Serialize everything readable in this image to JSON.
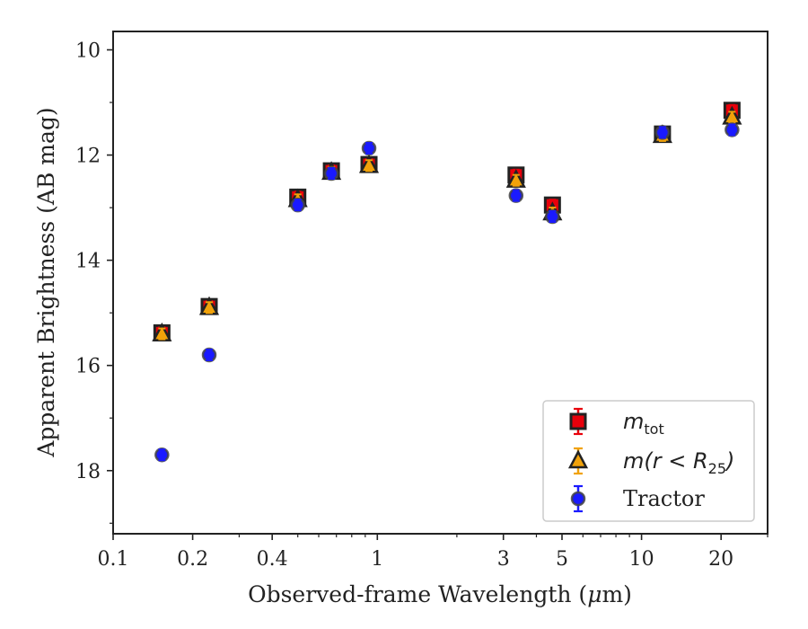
{
  "chart_data": {
    "type": "scatter",
    "xlabel_prefix": "Observed-frame Wavelength (",
    "xlabel_mu": "μ",
    "xlabel_suffix": "m)",
    "ylabel": "Apparent Brightness (AB mag)",
    "xscale": "log",
    "xlim": [
      0.1,
      30
    ],
    "ylim": [
      19.2,
      9.65
    ],
    "y_inverted": true,
    "x_ticks": [
      {
        "value": 0.1,
        "label": "0.1"
      },
      {
        "value": 0.2,
        "label": "0.2"
      },
      {
        "value": 0.4,
        "label": "0.4"
      },
      {
        "value": 1,
        "label": "1"
      },
      {
        "value": 3,
        "label": "3"
      },
      {
        "value": 5,
        "label": "5"
      },
      {
        "value": 10,
        "label": "10"
      },
      {
        "value": 20,
        "label": "20"
      }
    ],
    "y_ticks": [
      {
        "value": 10,
        "label": "10"
      },
      {
        "value": 12,
        "label": "12"
      },
      {
        "value": 14,
        "label": "14"
      },
      {
        "value": 16,
        "label": "16"
      },
      {
        "value": 18,
        "label": "18"
      }
    ],
    "grid": false,
    "legend_position": "bottom-right",
    "series": [
      {
        "key": "mtot",
        "legend": {
          "base": "m",
          "sub": "tot",
          "tail": ""
        },
        "marker": "square",
        "color": "#e8000b",
        "edge": "#222222",
        "errcolor": "#e8000b",
        "points": [
          {
            "x": 0.153,
            "y": 15.38
          },
          {
            "x": 0.231,
            "y": 14.88
          },
          {
            "x": 0.5,
            "y": 12.8
          },
          {
            "x": 0.67,
            "y": 12.3
          },
          {
            "x": 0.93,
            "y": 12.18
          },
          {
            "x": 3.35,
            "y": 12.38
          },
          {
            "x": 4.6,
            "y": 12.95
          },
          {
            "x": 12.0,
            "y": 11.6
          },
          {
            "x": 22.0,
            "y": 11.15
          }
        ]
      },
      {
        "key": "mr25",
        "legend": {
          "base": "m",
          "pre": "(r < R",
          "sub": "25",
          "tail": ")"
        },
        "marker": "triangle",
        "color": "#f1a20a",
        "edge": "#222222",
        "errcolor": "#f1a20a",
        "points": [
          {
            "x": 0.153,
            "y": 15.4
          },
          {
            "x": 0.231,
            "y": 14.9
          },
          {
            "x": 0.5,
            "y": 12.85
          },
          {
            "x": 0.67,
            "y": 12.33
          },
          {
            "x": 0.93,
            "y": 12.2
          },
          {
            "x": 3.35,
            "y": 12.48
          },
          {
            "x": 4.6,
            "y": 13.1
          },
          {
            "x": 12.0,
            "y": 11.63
          },
          {
            "x": 22.0,
            "y": 11.28
          }
        ]
      },
      {
        "key": "tractor",
        "legend": {
          "text": "Tractor"
        },
        "marker": "circle",
        "color": "#1a1aff",
        "edge": "#444444",
        "errcolor": "#1a1aff",
        "points": [
          {
            "x": 0.153,
            "y": 17.7
          },
          {
            "x": 0.231,
            "y": 15.8
          },
          {
            "x": 0.5,
            "y": 12.95
          },
          {
            "x": 0.67,
            "y": 12.35
          },
          {
            "x": 0.93,
            "y": 11.87
          },
          {
            "x": 3.35,
            "y": 12.77
          },
          {
            "x": 4.6,
            "y": 13.17
          },
          {
            "x": 12.0,
            "y": 11.57
          },
          {
            "x": 22.0,
            "y": 11.52
          }
        ]
      }
    ]
  }
}
